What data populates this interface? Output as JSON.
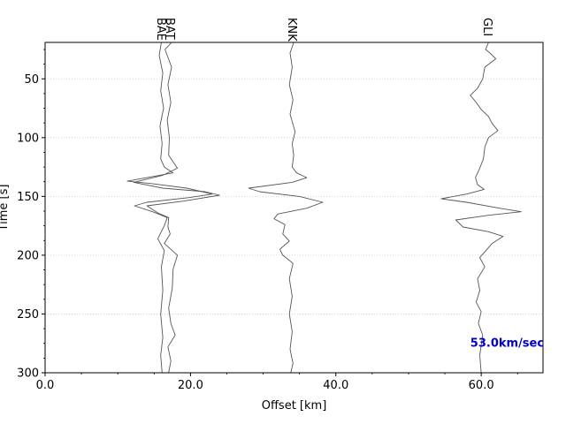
{
  "chart_data": {
    "type": "line",
    "title": "",
    "xlabel": "Offset [km]",
    "ylabel": "Time [s]",
    "xlim": [
      0,
      68.5
    ],
    "ylim": [
      300,
      19
    ],
    "y_inverted": true,
    "grid": "horizontal-dotted",
    "x_ticks": [
      {
        "value": 0,
        "label": "0.0"
      },
      {
        "value": 20,
        "label": "20.0"
      },
      {
        "value": 40,
        "label": "40.0"
      },
      {
        "value": 60,
        "label": "60.0"
      }
    ],
    "y_ticks": [
      {
        "value": 50,
        "label": "50"
      },
      {
        "value": 100,
        "label": "100"
      },
      {
        "value": 150,
        "label": "150"
      },
      {
        "value": 200,
        "label": "200"
      },
      {
        "value": 250,
        "label": "250"
      },
      {
        "value": 300,
        "label": "300"
      }
    ],
    "annotation": {
      "text": "53.0km/sec",
      "x": 58.5,
      "y": 278,
      "color": "#0000cc"
    },
    "trace_color": "#555555",
    "stations": [
      {
        "name": "BAE",
        "label_x": 15.9,
        "points": [
          [
            16.0,
            19
          ],
          [
            15.7,
            30
          ],
          [
            16.2,
            45
          ],
          [
            15.9,
            60
          ],
          [
            16.3,
            75
          ],
          [
            15.8,
            90
          ],
          [
            16.1,
            105
          ],
          [
            15.9,
            118
          ],
          [
            16.4,
            125
          ],
          [
            17.6,
            130
          ],
          [
            14.0,
            134
          ],
          [
            11.3,
            137
          ],
          [
            14.5,
            139
          ],
          [
            19.5,
            143
          ],
          [
            23.0,
            148
          ],
          [
            19.8,
            151
          ],
          [
            14.0,
            155
          ],
          [
            12.3,
            158
          ],
          [
            14.8,
            163
          ],
          [
            16.8,
            168
          ],
          [
            16.4,
            175
          ],
          [
            15.5,
            186
          ],
          [
            16.4,
            196
          ],
          [
            16.0,
            210
          ],
          [
            16.2,
            230
          ],
          [
            15.9,
            250
          ],
          [
            16.2,
            270
          ],
          [
            15.9,
            285
          ],
          [
            16.1,
            300
          ]
        ]
      },
      {
        "name": "BAT",
        "label_x": 17.1,
        "points": [
          [
            17.4,
            19
          ],
          [
            16.5,
            25
          ],
          [
            17.4,
            40
          ],
          [
            16.9,
            55
          ],
          [
            17.3,
            70
          ],
          [
            16.8,
            85
          ],
          [
            17.1,
            100
          ],
          [
            17.0,
            115
          ],
          [
            18.2,
            126
          ],
          [
            16.2,
            132
          ],
          [
            12.2,
            138
          ],
          [
            16.2,
            143
          ],
          [
            22.0,
            146
          ],
          [
            24.0,
            149
          ],
          [
            19.0,
            154
          ],
          [
            14.0,
            158
          ],
          [
            15.5,
            164
          ],
          [
            17.0,
            168
          ],
          [
            16.9,
            176
          ],
          [
            17.2,
            182
          ],
          [
            16.4,
            190
          ],
          [
            18.2,
            200
          ],
          [
            17.6,
            212
          ],
          [
            17.5,
            228
          ],
          [
            17.0,
            245
          ],
          [
            17.3,
            258
          ],
          [
            17.9,
            268
          ],
          [
            16.9,
            278
          ],
          [
            17.3,
            290
          ],
          [
            17.0,
            300
          ]
        ]
      },
      {
        "name": "KNK",
        "label_x": 33.9,
        "points": [
          [
            34.2,
            19
          ],
          [
            33.7,
            28
          ],
          [
            34.0,
            40
          ],
          [
            33.6,
            55
          ],
          [
            34.1,
            68
          ],
          [
            33.7,
            80
          ],
          [
            34.4,
            95
          ],
          [
            34.0,
            105
          ],
          [
            34.2,
            115
          ],
          [
            34.0,
            125
          ],
          [
            34.6,
            130
          ],
          [
            36.0,
            134
          ],
          [
            34.0,
            138
          ],
          [
            28.0,
            143
          ],
          [
            29.5,
            146
          ],
          [
            35.0,
            150
          ],
          [
            38.2,
            155
          ],
          [
            36.0,
            160
          ],
          [
            32.0,
            165
          ],
          [
            31.5,
            169
          ],
          [
            33.0,
            174
          ],
          [
            32.7,
            182
          ],
          [
            33.6,
            188
          ],
          [
            32.3,
            195
          ],
          [
            32.7,
            200
          ],
          [
            34.1,
            207
          ],
          [
            33.6,
            220
          ],
          [
            34.0,
            235
          ],
          [
            33.6,
            250
          ],
          [
            34.0,
            265
          ],
          [
            33.7,
            280
          ],
          [
            34.1,
            292
          ],
          [
            33.8,
            300
          ]
        ]
      },
      {
        "name": "GLI",
        "label_x": 60.8,
        "points": [
          [
            61.0,
            19
          ],
          [
            60.6,
            25
          ],
          [
            61.2,
            28
          ],
          [
            62.0,
            33
          ],
          [
            60.5,
            40
          ],
          [
            60.2,
            50
          ],
          [
            59.5,
            58
          ],
          [
            58.5,
            64
          ],
          [
            59.3,
            70
          ],
          [
            60.0,
            76
          ],
          [
            61.0,
            82
          ],
          [
            61.5,
            88
          ],
          [
            62.3,
            94
          ],
          [
            61.0,
            100
          ],
          [
            60.5,
            108
          ],
          [
            60.3,
            118
          ],
          [
            59.8,
            126
          ],
          [
            59.2,
            134
          ],
          [
            59.5,
            140
          ],
          [
            60.4,
            144
          ],
          [
            58.0,
            148
          ],
          [
            54.5,
            152
          ],
          [
            58.0,
            155
          ],
          [
            62.5,
            160
          ],
          [
            65.5,
            163
          ],
          [
            61.0,
            166
          ],
          [
            56.5,
            170
          ],
          [
            57.5,
            176
          ],
          [
            61.0,
            180
          ],
          [
            63.0,
            184
          ],
          [
            61.5,
            190
          ],
          [
            60.8,
            195
          ],
          [
            59.8,
            202
          ],
          [
            60.5,
            210
          ],
          [
            59.5,
            220
          ],
          [
            59.8,
            230
          ],
          [
            59.3,
            240
          ],
          [
            60.0,
            248
          ],
          [
            59.6,
            258
          ],
          [
            60.2,
            268
          ],
          [
            59.8,
            285
          ],
          [
            60.0,
            300
          ]
        ]
      }
    ]
  }
}
